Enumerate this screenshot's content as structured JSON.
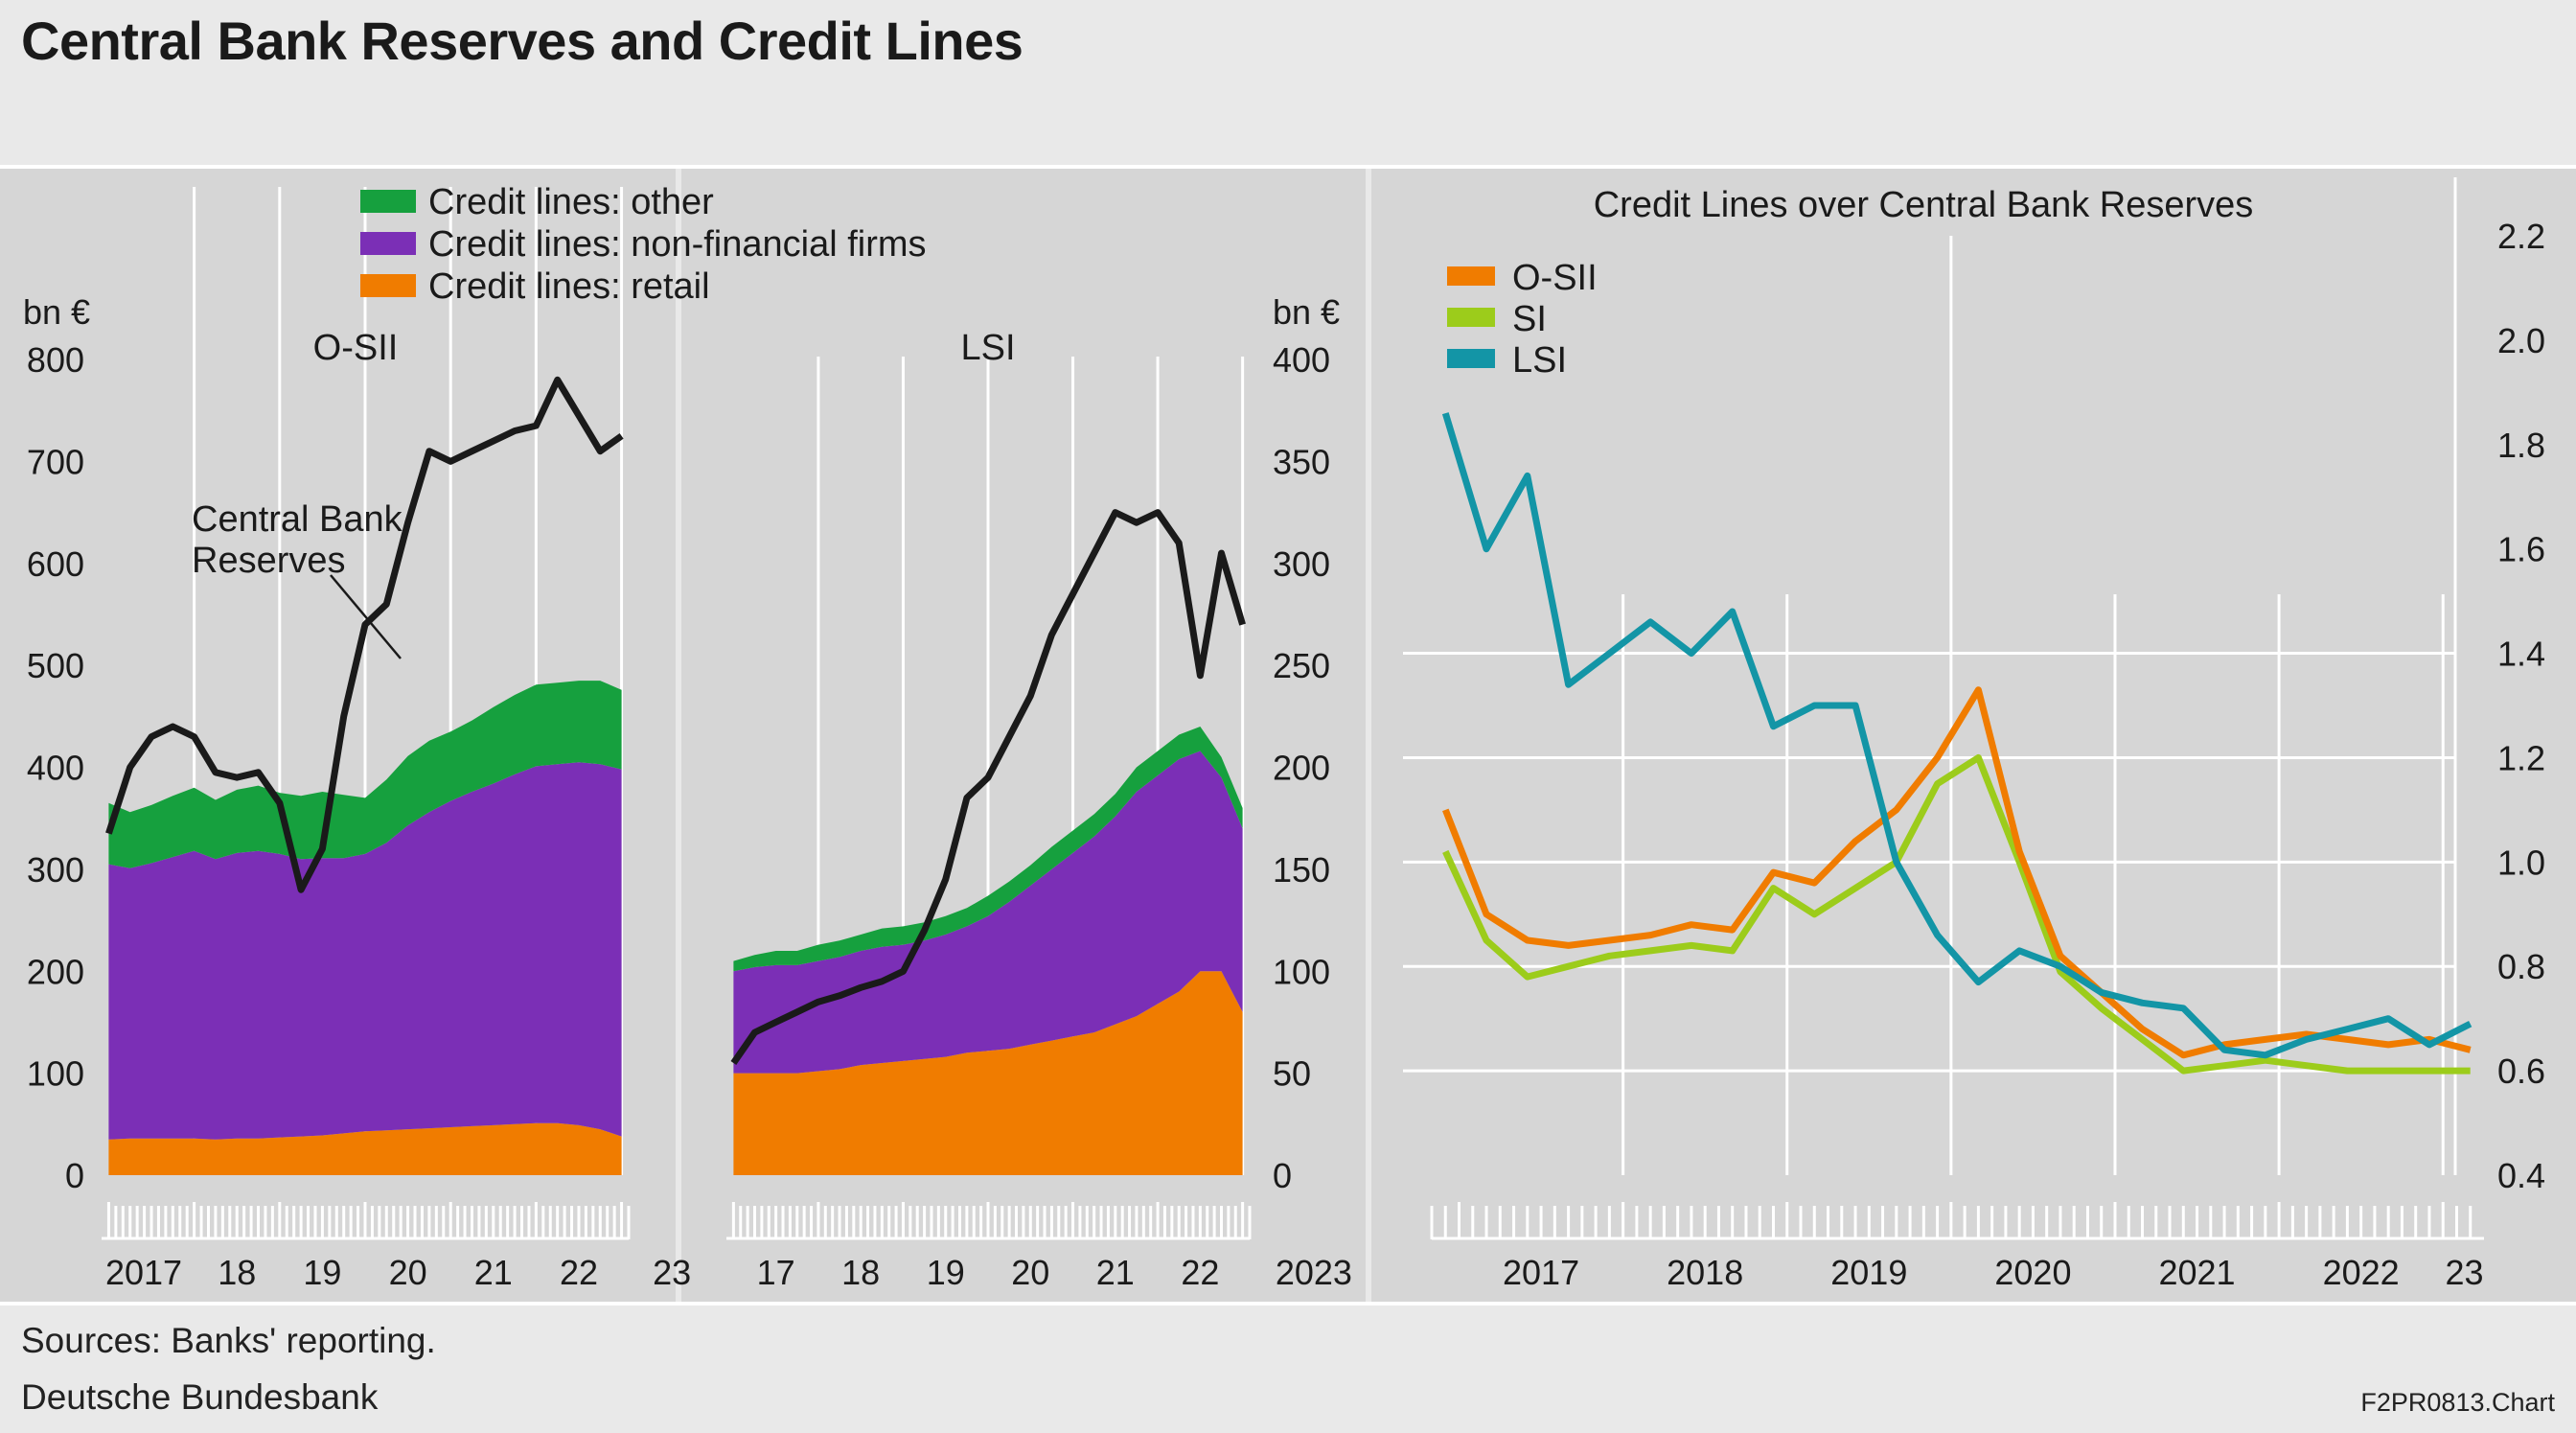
{
  "header": {
    "title": "Central Bank Reserves and Credit Lines"
  },
  "footer": {
    "sources": "Sources: Banks' reporting.",
    "publisher": "Deutsche Bundesbank",
    "chart_code": "F2PR0813.Chart"
  },
  "colors": {
    "page_bg": "#e9e9e9",
    "panel_bg": "#d6d6d6",
    "grid": "#ffffff",
    "credit_other": "#16a03e",
    "credit_nonfin": "#7b2fb6",
    "credit_retail": "#f07c00",
    "reserves": "#1a1a1a",
    "osii": "#f07c00",
    "si": "#9ccc1b",
    "lsi": "#1395a6"
  },
  "legend_left": {
    "other": "Credit lines: other",
    "nonfin": "Credit lines: non-financial firms",
    "retail": "Credit lines: retail"
  },
  "chart_data": [
    {
      "type": "area",
      "panel": "O-SII",
      "ylabel": "bn €",
      "ylim": [
        0,
        800
      ],
      "yticks": [
        "0",
        "100",
        "200",
        "300",
        "400",
        "500",
        "600",
        "700",
        "800"
      ],
      "xticks": [
        "2017",
        "18",
        "19",
        "20",
        "21",
        "22",
        "23"
      ],
      "annotation": [
        "Central Bank",
        "Reserves"
      ],
      "x": [
        "2017-01",
        "2017-04",
        "2017-07",
        "2017-10",
        "2018-01",
        "2018-04",
        "2018-07",
        "2018-10",
        "2019-01",
        "2019-04",
        "2019-07",
        "2019-10",
        "2020-01",
        "2020-04",
        "2020-07",
        "2020-10",
        "2021-01",
        "2021-04",
        "2021-07",
        "2021-10",
        "2022-01",
        "2022-04",
        "2022-07",
        "2022-10",
        "2023-01"
      ],
      "series": [
        {
          "name": "Credit lines: retail",
          "stack": true,
          "values": [
            35,
            36,
            36,
            36,
            36,
            35,
            36,
            36,
            37,
            38,
            39,
            41,
            43,
            44,
            45,
            46,
            47,
            48,
            49,
            50,
            51,
            51,
            49,
            45,
            38
          ]
        },
        {
          "name": "Credit lines: non-financial firms",
          "stack": true,
          "values": [
            270,
            265,
            270,
            276,
            282,
            275,
            280,
            282,
            278,
            272,
            272,
            270,
            272,
            282,
            298,
            310,
            320,
            328,
            335,
            343,
            350,
            352,
            356,
            358,
            360
          ]
        },
        {
          "name": "Credit lines: other",
          "stack": true,
          "values": [
            60,
            55,
            57,
            60,
            62,
            58,
            62,
            64,
            60,
            62,
            65,
            62,
            55,
            62,
            68,
            70,
            68,
            70,
            75,
            78,
            80,
            80,
            80,
            82,
            78
          ]
        },
        {
          "name": "Central Bank Reserves",
          "stack": false,
          "values": [
            335,
            400,
            430,
            440,
            430,
            395,
            390,
            395,
            365,
            280,
            320,
            450,
            540,
            560,
            640,
            710,
            700,
            710,
            720,
            730,
            735,
            780,
            745,
            710,
            725
          ]
        }
      ]
    },
    {
      "type": "area",
      "panel": "LSI",
      "ylabel": "bn €",
      "ylim": [
        0,
        400
      ],
      "yticks": [
        "0",
        "50",
        "100",
        "150",
        "200",
        "250",
        "300",
        "350",
        "400"
      ],
      "xticks": [
        "17",
        "18",
        "19",
        "20",
        "21",
        "22",
        "2023"
      ],
      "x": [
        "2017-01",
        "2017-04",
        "2017-07",
        "2017-10",
        "2018-01",
        "2018-04",
        "2018-07",
        "2018-10",
        "2019-01",
        "2019-04",
        "2019-07",
        "2019-10",
        "2020-01",
        "2020-04",
        "2020-07",
        "2020-10",
        "2021-01",
        "2021-04",
        "2021-07",
        "2021-10",
        "2022-01",
        "2022-04",
        "2022-07",
        "2022-10",
        "2023-01"
      ],
      "series": [
        {
          "name": "Credit lines: retail",
          "stack": true,
          "values": [
            50,
            50,
            50,
            50,
            51,
            52,
            54,
            55,
            56,
            57,
            58,
            60,
            61,
            62,
            64,
            66,
            68,
            70,
            74,
            78,
            84,
            90,
            100,
            100,
            80
          ]
        },
        {
          "name": "Credit lines: non-financial firms",
          "stack": true,
          "values": [
            50,
            52,
            53,
            53,
            54,
            55,
            56,
            57,
            57,
            58,
            60,
            62,
            66,
            72,
            78,
            84,
            90,
            96,
            102,
            110,
            112,
            114,
            108,
            95,
            90
          ]
        },
        {
          "name": "Credit lines: other",
          "stack": true,
          "values": [
            5,
            6,
            7,
            7,
            8,
            8,
            8,
            9,
            9,
            9,
            9,
            9,
            10,
            10,
            10,
            11,
            11,
            11,
            11,
            12,
            12,
            12,
            12,
            10,
            10
          ]
        },
        {
          "name": "Central Bank Reserves",
          "stack": false,
          "values": [
            55,
            70,
            75,
            80,
            85,
            88,
            92,
            95,
            100,
            120,
            145,
            185,
            195,
            215,
            235,
            265,
            285,
            305,
            325,
            320,
            325,
            310,
            245,
            305,
            270
          ]
        }
      ]
    },
    {
      "type": "line",
      "panel": "Credit Lines over Central Bank Reserves",
      "title": "Credit Lines over Central Bank Reserves",
      "ylim": [
        0.4,
        2.2
      ],
      "yticks": [
        "0.4",
        "0.6",
        "0.8",
        "1.0",
        "1.2",
        "1.4",
        "1.6",
        "1.8",
        "2.0",
        "2.2"
      ],
      "xticks": [
        "2017",
        "2018",
        "2019",
        "2020",
        "2021",
        "2022",
        "23"
      ],
      "x": [
        "2016-12",
        "2017-03",
        "2017-06",
        "2017-09",
        "2017-12",
        "2018-03",
        "2018-06",
        "2018-09",
        "2018-12",
        "2019-03",
        "2019-06",
        "2019-09",
        "2019-12",
        "2020-03",
        "2020-06",
        "2020-09",
        "2020-12",
        "2021-03",
        "2021-06",
        "2021-09",
        "2021-12",
        "2022-03",
        "2022-06",
        "2022-09",
        "2022-12",
        "2023-03"
      ],
      "series": [
        {
          "name": "O-SII",
          "values": [
            1.1,
            0.9,
            0.85,
            0.84,
            0.85,
            0.86,
            0.88,
            0.87,
            0.98,
            0.96,
            1.04,
            1.1,
            1.2,
            1.33,
            1.02,
            0.82,
            0.75,
            0.68,
            0.63,
            0.65,
            0.66,
            0.67,
            0.66,
            0.65,
            0.66,
            0.64
          ]
        },
        {
          "name": "SI",
          "values": [
            1.02,
            0.85,
            0.78,
            0.8,
            0.82,
            0.83,
            0.84,
            0.83,
            0.95,
            0.9,
            0.95,
            1.0,
            1.15,
            1.2,
            1.0,
            0.79,
            0.72,
            0.66,
            0.6,
            0.61,
            0.62,
            0.61,
            0.6,
            0.6,
            0.6,
            0.6
          ]
        },
        {
          "name": "LSI",
          "values": [
            1.86,
            1.6,
            1.74,
            1.34,
            1.4,
            1.46,
            1.4,
            1.48,
            1.26,
            1.3,
            1.3,
            1.0,
            0.86,
            0.77,
            0.83,
            0.8,
            0.75,
            0.73,
            0.72,
            0.64,
            0.63,
            0.66,
            0.68,
            0.7,
            0.65,
            0.69
          ]
        }
      ]
    }
  ]
}
